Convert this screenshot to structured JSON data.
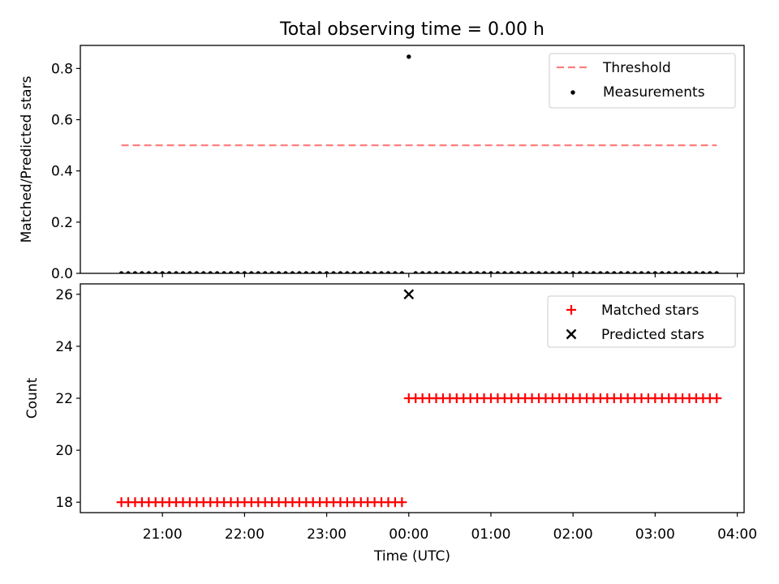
{
  "figure": {
    "title": "Total observing time = 0.00 h"
  },
  "chart_data": [
    {
      "type": "scatter",
      "title": "Total observing time = 0.00 h",
      "xlabel": "",
      "ylabel": "Matched/Predicted stars",
      "xlim": [
        "20:00",
        "04:05"
      ],
      "ylim": [
        0,
        0.89
      ],
      "yticks": [
        0.0,
        0.2,
        0.4,
        0.6,
        0.8
      ],
      "ytick_labels": [
        "0.0",
        "0.2",
        "0.4",
        "0.6",
        "0.8"
      ],
      "legend": {
        "position": "upper right",
        "entries": [
          "Threshold",
          "Measurements"
        ]
      },
      "series": [
        {
          "name": "Threshold",
          "kind": "dashed-line",
          "color": "#ff7f7f",
          "points": [
            {
              "x": "20:30",
              "y": 0.5
            },
            {
              "x": "03:45",
              "y": 0.5
            }
          ]
        },
        {
          "name": "Measurements",
          "kind": "dot",
          "color": "#000000",
          "x_start": "20:30",
          "x_end": "03:45",
          "x_step_min": 5,
          "y_default": 0.0,
          "exceptions": [
            {
              "x": "00:00",
              "y": 0.846
            }
          ]
        }
      ]
    },
    {
      "type": "scatter",
      "xlabel": "Time (UTC)",
      "ylabel": "Count",
      "xlim": [
        "20:00",
        "04:05"
      ],
      "ylim": [
        17.6,
        26.4
      ],
      "yticks": [
        18,
        20,
        22,
        24,
        26
      ],
      "ytick_labels": [
        "18",
        "20",
        "22",
        "24",
        "26"
      ],
      "xticks": [
        "21:00",
        "22:00",
        "23:00",
        "00:00",
        "01:00",
        "02:00",
        "03:00",
        "04:00"
      ],
      "legend": {
        "position": "upper right",
        "entries": [
          "Matched stars",
          "Predicted stars"
        ]
      },
      "series": [
        {
          "name": "Matched stars",
          "marker": "+",
          "color": "#ff0000",
          "segments": [
            {
              "x_start": "20:30",
              "x_end": "23:55",
              "x_step_min": 5,
              "y": 18
            },
            {
              "x_start": "00:00",
              "x_end": "03:45",
              "x_step_min": 5,
              "y": 22
            }
          ]
        },
        {
          "name": "Predicted stars",
          "marker": "x",
          "color": "#000000",
          "points": [
            {
              "x": "00:00",
              "y": 26
            }
          ]
        }
      ]
    }
  ]
}
